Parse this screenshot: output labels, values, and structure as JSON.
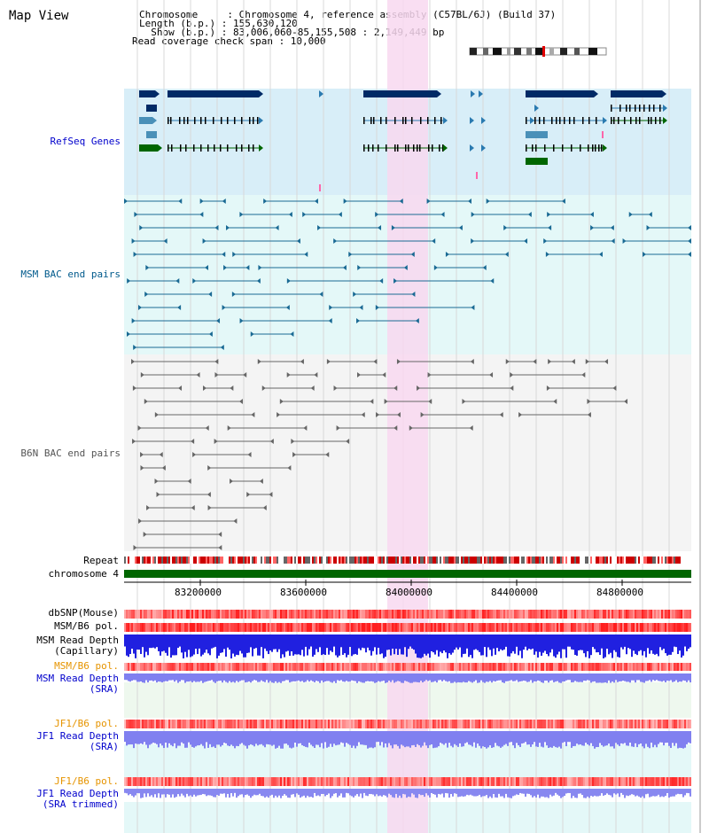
{
  "page_title": "Map View",
  "info": {
    "chromosome": "Chromosome     : Chromosome 4, reference assembly (C57BL/6J) (Build 37)",
    "length": "Length (b.p.) : 155,630,120",
    "show": "  Show (b.p.) : 83,006,060-85,155,508 : 2,149,449 bp",
    "read_span": "Read coverage check span : 10,000"
  },
  "tracks": {
    "refseq": {
      "label": "RefSeq Genes",
      "color": "#0000cc"
    },
    "msm_bac": {
      "label": "MSM BAC end pairs",
      "color": "#005a8c"
    },
    "b6n_bac": {
      "label": "B6N BAC end pairs",
      "color": "#555555"
    },
    "repeat": {
      "label": "Repeat"
    },
    "chrom": {
      "label": "chromosome 4"
    },
    "dbsnp": {
      "label": "dbSNP(Mouse)"
    },
    "msm_b6_pol": {
      "label": "MSM/B6 pol."
    },
    "msm_read_cap": {
      "label1": "MSM Read Depth",
      "label2": "(Capillary)"
    },
    "msm_b6_pol2": {
      "label": "MSM/B6 pol.",
      "color": "#e69400"
    },
    "msm_read_sra": {
      "label1": "MSM Read Depth",
      "label2": "(SRA)",
      "color": "#0000cc"
    },
    "jf1_b6_pol": {
      "label": "JF1/B6 pol.",
      "color": "#e69400"
    },
    "jf1_read_sra": {
      "label1": "JF1 Read Depth",
      "label2": "(SRA)",
      "color": "#0000cc"
    },
    "jf1_b6_pol2": {
      "label": "JF1/B6 pol.",
      "color": "#e69400"
    },
    "jf1_read_trim": {
      "label1": "JF1 Read Depth",
      "label2": "(SRA trimmed)",
      "color": "#0000cc"
    }
  },
  "axis": {
    "ticks": [
      "83200000",
      "83600000",
      "84000000",
      "84400000",
      "84800000"
    ]
  },
  "colors": {
    "highlight": "#f8d8f0",
    "refseq_bg": "#d8eef8",
    "msm_bg": "#e4f8f8",
    "b6n_bg": "#f4f4f4",
    "gene_dark": "#002a66",
    "gene_mid": "#4a90b8",
    "gene_green": "#006600"
  }
}
